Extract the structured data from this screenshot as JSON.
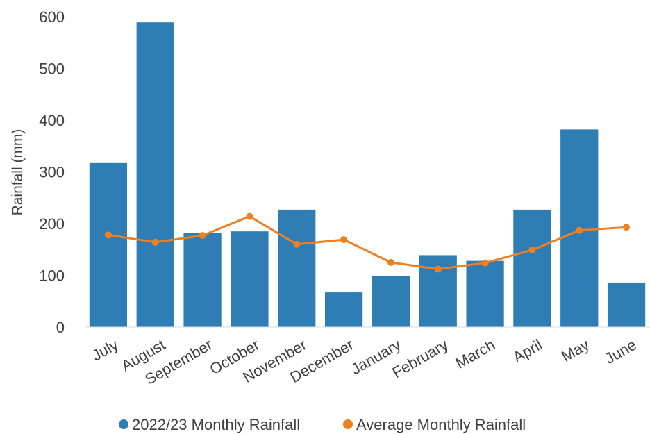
{
  "chart_data": {
    "type": "bar",
    "title": "",
    "xlabel": "",
    "ylabel": "Rainfall (mm)",
    "ylim": [
      0,
      600
    ],
    "yticks": [
      0,
      100,
      200,
      300,
      400,
      500,
      600
    ],
    "grid": false,
    "legend_position": "bottom",
    "categories": [
      "July",
      "August",
      "September",
      "October",
      "November",
      "December",
      "January",
      "February",
      "March",
      "April",
      "May",
      "June"
    ],
    "series": [
      {
        "name": "2022/23 Monthly Rainfall",
        "type": "bar",
        "color": "#2e7db5",
        "values": [
          317,
          589,
          182,
          185,
          227,
          67,
          99,
          139,
          128,
          227,
          382,
          86
        ]
      },
      {
        "name": "Average Monthly Rainfall",
        "type": "line",
        "color": "#f07f20",
        "values": [
          178,
          164,
          177,
          214,
          160,
          169,
          125,
          112,
          124,
          149,
          187,
          193
        ]
      }
    ]
  }
}
